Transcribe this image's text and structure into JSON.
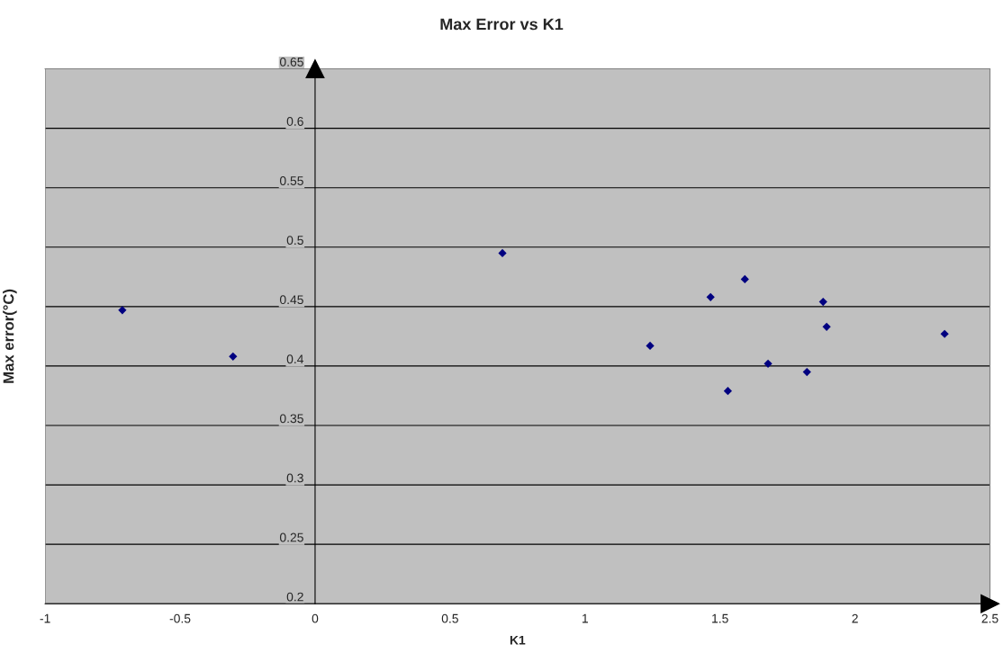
{
  "chart_data": {
    "type": "scatter",
    "title": "Max Error vs K1",
    "xlabel": "K1",
    "ylabel": "Max error(°C)",
    "x": [
      -0.714,
      -0.304,
      0.694,
      1.241,
      1.465,
      1.592,
      1.529,
      1.678,
      1.822,
      1.882,
      1.895,
      2.332
    ],
    "series": [
      {
        "color": "#000080",
        "values": [
          0.447,
          0.408,
          0.495,
          0.417,
          0.458,
          0.473,
          0.379,
          0.402,
          0.395,
          0.454,
          0.433,
          0.427
        ]
      }
    ],
    "xlim": [
      -1,
      2.5
    ],
    "xticks": [
      -1,
      -0.5,
      0,
      0.5,
      1,
      1.5,
      2,
      2.5
    ],
    "ylim": [
      0.2,
      0.65
    ],
    "yticks": [
      0.2,
      0.25,
      0.3,
      0.35,
      0.4,
      0.45,
      0.5,
      0.55,
      0.6,
      0.65
    ],
    "grid": "y",
    "marker": "diamond"
  }
}
